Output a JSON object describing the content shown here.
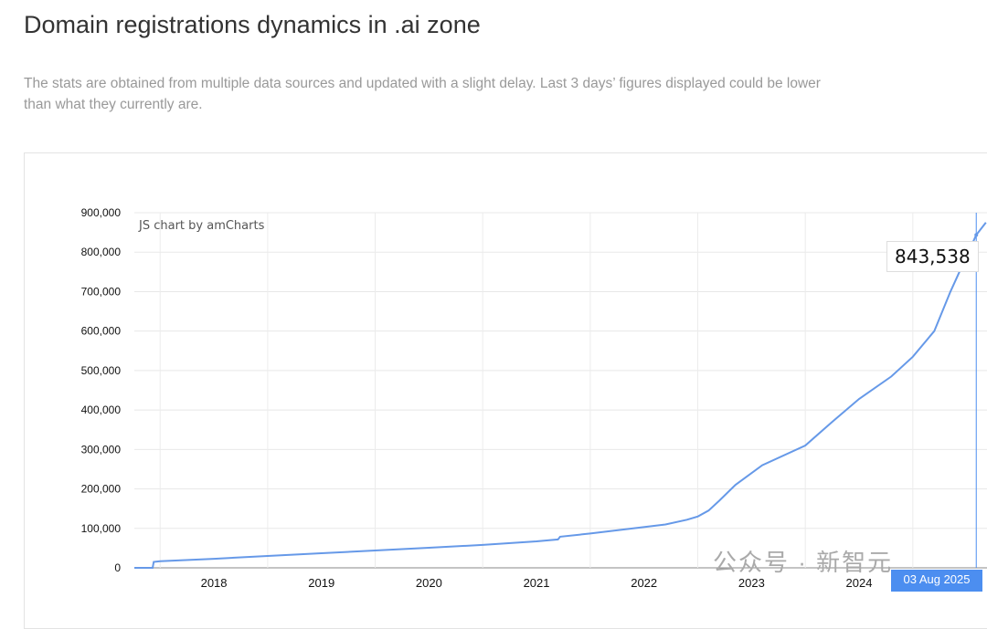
{
  "title": "Domain registrations dynamics in .ai zone",
  "description": "The stats are obtained from multiple data sources and updated with a slight delay. Last 3 days’ figures displayed could be lower than what they currently are.",
  "credit": "JS chart by amCharts",
  "watermark": "公众号 · 新智元",
  "colors": {
    "line": "#6699e8",
    "cursor": "#4c8ef0"
  },
  "tooltip": {
    "value": "843,538",
    "date": "03 Aug 2025"
  },
  "chart_data": {
    "type": "line",
    "title": "Domain registrations dynamics in .ai zone",
    "xlabel": "",
    "ylabel": "",
    "ylim": [
      0,
      900000
    ],
    "xlim": [
      2017.76,
      2025.69
    ],
    "yticks": [
      "0",
      "100,000",
      "200,000",
      "300,000",
      "400,000",
      "500,000",
      "600,000",
      "700,000",
      "800,000",
      "900,000"
    ],
    "xticks": [
      "2018",
      "2019",
      "2020",
      "2021",
      "2022",
      "2023",
      "2024"
    ],
    "grid": true,
    "series": [
      {
        "name": "Registrations",
        "points": [
          [
            2017.76,
            0
          ],
          [
            2017.93,
            0
          ],
          [
            2017.94,
            15000
          ],
          [
            2018.0,
            17000
          ],
          [
            2018.5,
            23000
          ],
          [
            2019.0,
            30000
          ],
          [
            2019.5,
            37000
          ],
          [
            2020.0,
            44000
          ],
          [
            2020.5,
            51000
          ],
          [
            2021.0,
            58000
          ],
          [
            2021.5,
            67000
          ],
          [
            2021.7,
            72000
          ],
          [
            2021.72,
            79000
          ],
          [
            2022.0,
            87000
          ],
          [
            2022.4,
            100000
          ],
          [
            2022.7,
            110000
          ],
          [
            2022.9,
            122000
          ],
          [
            2023.0,
            130000
          ],
          [
            2023.1,
            145000
          ],
          [
            2023.2,
            170000
          ],
          [
            2023.35,
            210000
          ],
          [
            2023.6,
            260000
          ],
          [
            2024.0,
            310000
          ],
          [
            2024.25,
            370000
          ],
          [
            2024.5,
            428000
          ],
          [
            2024.8,
            485000
          ],
          [
            2025.0,
            535000
          ],
          [
            2025.2,
            600000
          ],
          [
            2025.35,
            700000
          ],
          [
            2025.59,
            843538
          ],
          [
            2025.68,
            875000
          ]
        ]
      }
    ]
  }
}
